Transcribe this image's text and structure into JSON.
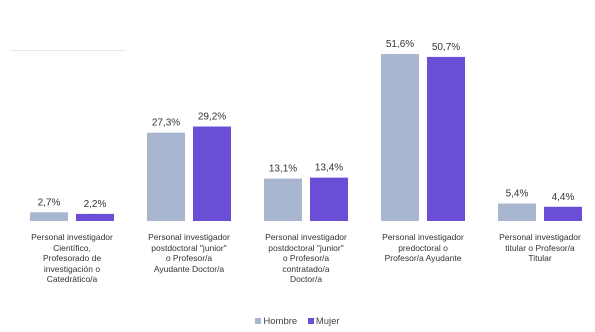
{
  "chart_data": {
    "type": "bar",
    "categories": [
      "Personal investigador Científico, Profesorado de investigación o Catedrático/a",
      "Personal investigador postdoctoral \"junior\" o Profesor/a Ayudante Doctor/a",
      "Personal investigador postdoctoral \"junior\" o Profesor/a contratado/a Doctor/a",
      "Personal investigador predoctoral o Profesor/a Ayudante",
      "Personal investigador titular o Profesor/a Titular"
    ],
    "category_lines": [
      [
        "Personal investigador",
        "Científico,",
        "Profesorado de",
        "investigación o",
        "Catedrático/a"
      ],
      [
        "Personal investigador",
        "postdoctoral \"junior\"",
        "o Profesor/a",
        "Ayudante Doctor/a"
      ],
      [
        "Personal investigador",
        "postdoctoral \"junior\"",
        "o Profesor/a",
        "contratado/a",
        "Doctor/a"
      ],
      [
        "Personal investigador",
        "predoctoral o",
        "Profesor/a Ayudante"
      ],
      [
        "Personal investigador",
        "titular o Profesor/a",
        "Titular"
      ]
    ],
    "series": [
      {
        "name": "Hombre",
        "color": "#a9b6d0",
        "values": [
          2.7,
          27.3,
          13.1,
          51.6,
          5.4
        ],
        "labels": [
          "2,7%",
          "27,3%",
          "13,1%",
          "51,6%",
          "5,4%"
        ]
      },
      {
        "name": "Mujer",
        "color": "#6a4fd6",
        "values": [
          2.2,
          29.2,
          13.4,
          50.7,
          4.4
        ],
        "labels": [
          "2,2%",
          "29,2%",
          "13,4%",
          "50,7%",
          "4,4%"
        ]
      }
    ],
    "title": "",
    "xlabel": "",
    "ylabel": "",
    "ylim": [
      0,
      55
    ],
    "grid": false,
    "legend_position": "bottom"
  }
}
